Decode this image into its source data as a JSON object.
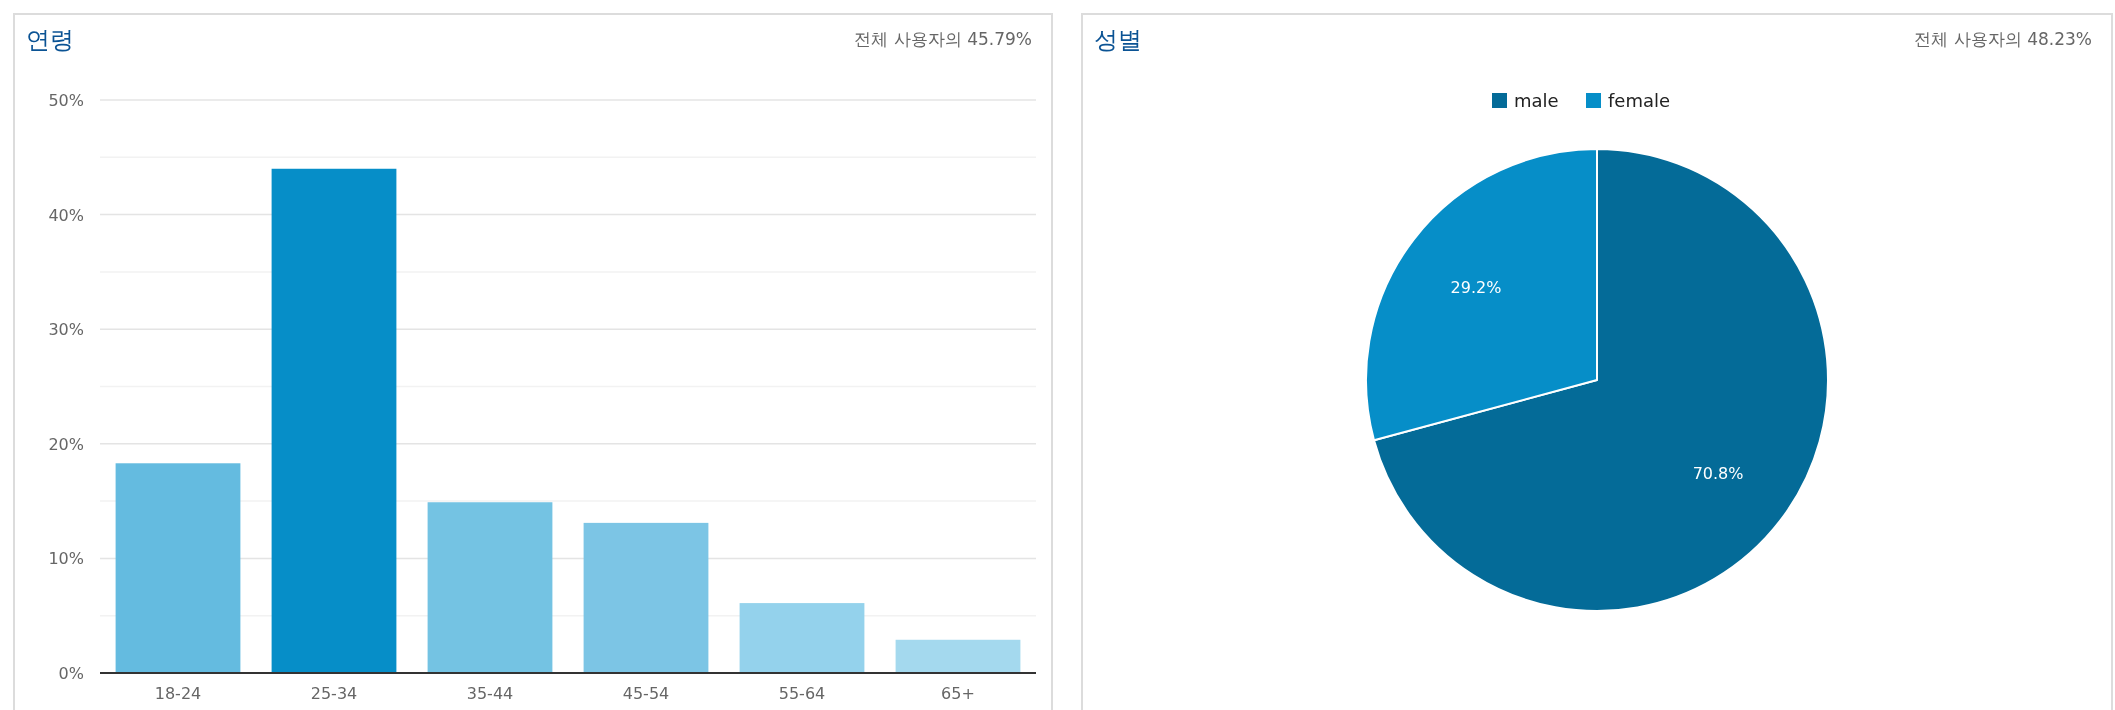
{
  "chart_data": [
    {
      "type": "bar",
      "title": "연령",
      "subtitle": "전체 사용자의 45.79%",
      "categories": [
        "18-24",
        "25-34",
        "35-44",
        "45-54",
        "55-64",
        "65+"
      ],
      "values": [
        18.3,
        44.0,
        14.9,
        13.1,
        6.1,
        2.9
      ],
      "colors": [
        "#64bbe0",
        "#068ec8",
        "#74c3e3",
        "#7cc5e5",
        "#94d2ec",
        "#a4d9ee"
      ],
      "ylim": [
        0,
        50
      ],
      "yticks": [
        {
          "value": 0,
          "label": "0%"
        },
        {
          "value": 5,
          "label": null
        },
        {
          "value": 10,
          "label": "10%"
        },
        {
          "value": 15,
          "label": null
        },
        {
          "value": 20,
          "label": "20%"
        },
        {
          "value": 25,
          "label": null
        },
        {
          "value": 30,
          "label": "30%"
        },
        {
          "value": 35,
          "label": null
        },
        {
          "value": 40,
          "label": "40%"
        },
        {
          "value": 45,
          "label": null
        },
        {
          "value": 50,
          "label": "50%"
        }
      ],
      "grid": "y"
    },
    {
      "type": "pie",
      "title": "성별",
      "subtitle": "전체 사용자의 48.23%",
      "categories": [
        "male",
        "female"
      ],
      "values": [
        70.8,
        29.2
      ],
      "colors": [
        "#046b98",
        "#068ec8"
      ],
      "value_labels": [
        "70.8%",
        "29.2%"
      ],
      "legend": "top"
    }
  ]
}
